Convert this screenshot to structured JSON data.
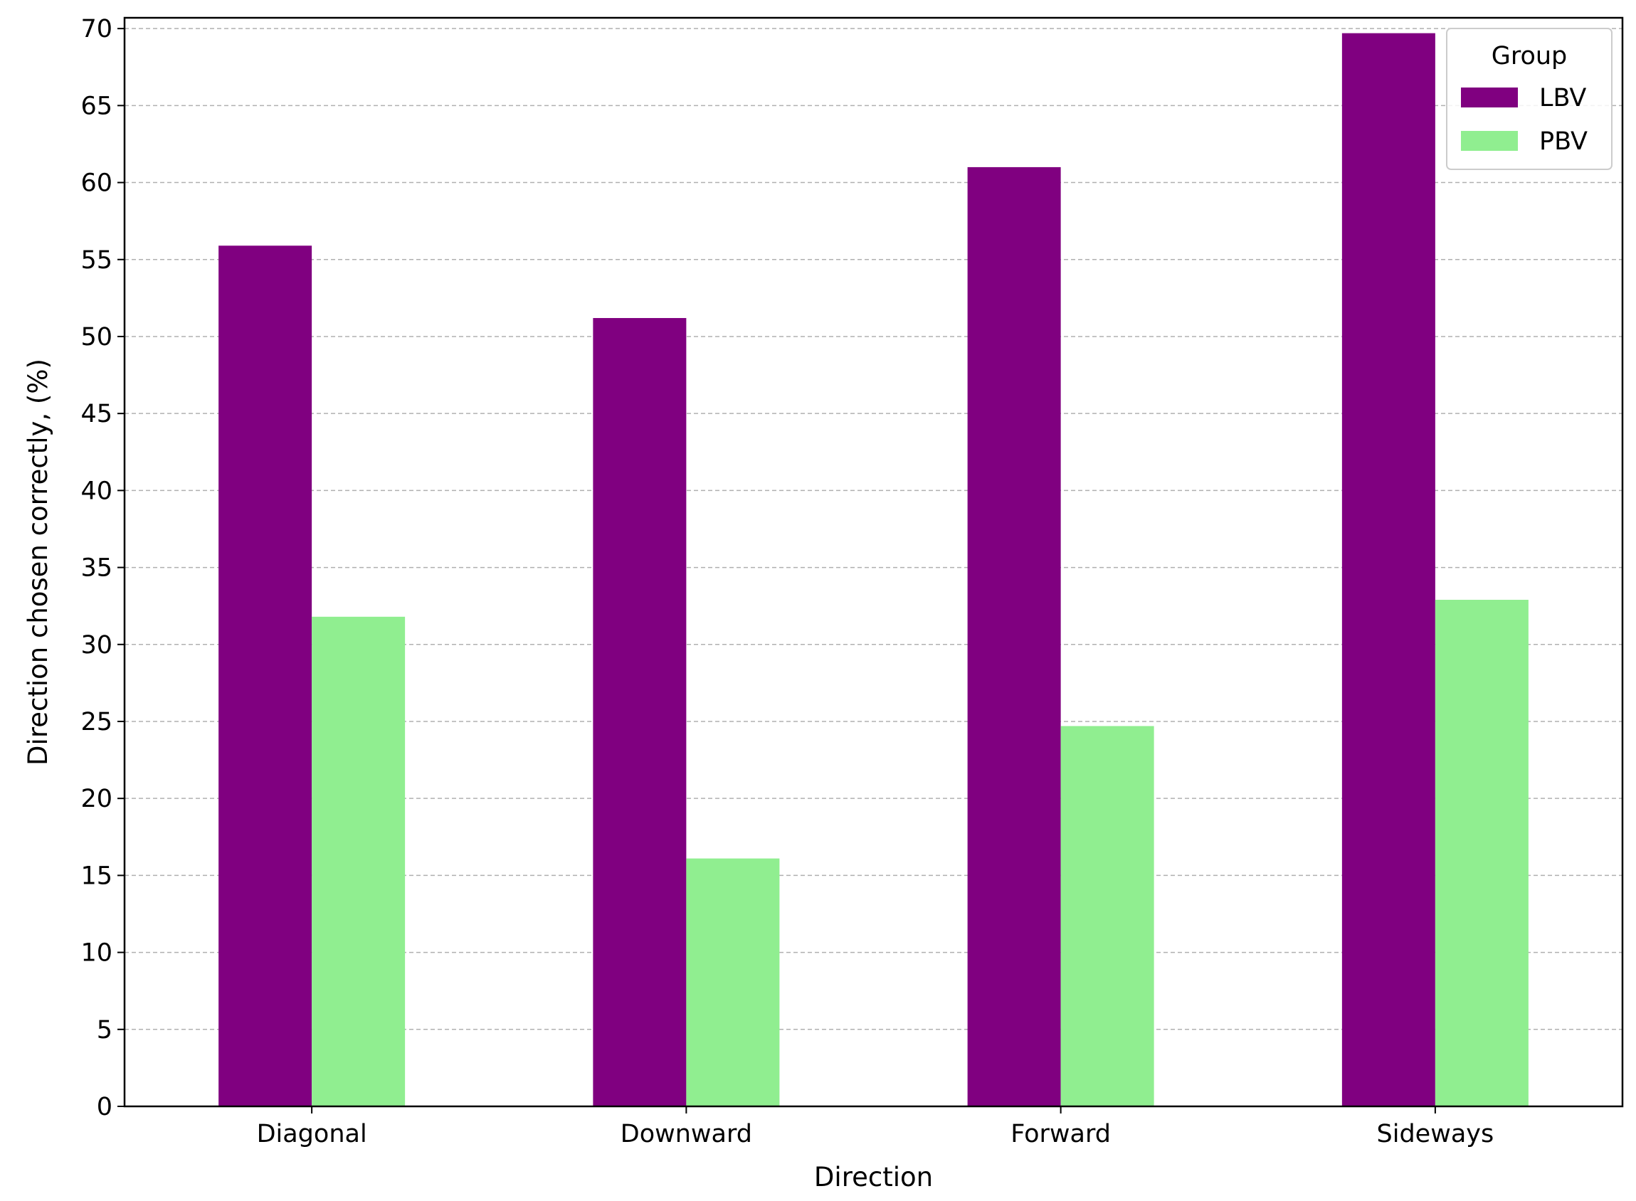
{
  "chart_data": {
    "type": "bar",
    "xlabel": "Direction",
    "ylabel": "Direction chosen correctly, (%)",
    "categories": [
      "Diagonal",
      "Downward",
      "Forward",
      "Sideways"
    ],
    "series": [
      {
        "name": "LBV",
        "color": "#800080",
        "values": [
          55.9,
          51.2,
          61.0,
          69.7
        ]
      },
      {
        "name": "PBV",
        "color": "#90ee90",
        "values": [
          31.8,
          16.1,
          24.7,
          32.9
        ]
      }
    ],
    "ylim": [
      0,
      70.7
    ],
    "yticks": [
      0,
      5,
      10,
      15,
      20,
      25,
      30,
      35,
      40,
      45,
      50,
      55,
      60,
      65,
      70
    ],
    "grid": "y-dashed",
    "legend": {
      "title": "Group",
      "placement": "top-right"
    }
  }
}
